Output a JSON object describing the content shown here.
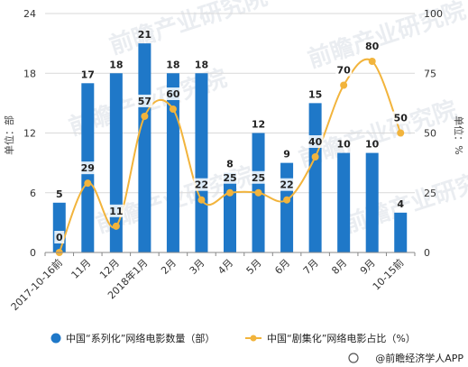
{
  "chart_data": {
    "type": "bar",
    "categories": [
      "2017-10-16前",
      "11月",
      "12月",
      "2018年1月",
      "2月",
      "3月",
      "4月",
      "5月",
      "6月",
      "7月",
      "8月",
      "9月",
      "10-15前"
    ],
    "series": [
      {
        "name": "中国“系列化”网络电影数量（部）",
        "kind": "bar",
        "axis": "left",
        "values": [
          5,
          17,
          18,
          21,
          18,
          18,
          8,
          12,
          9,
          15,
          10,
          10,
          4
        ]
      },
      {
        "name": "中国“剧集化”网络电影占比（%）",
        "kind": "line",
        "axis": "right",
        "values": [
          0,
          29,
          11,
          57,
          60,
          22,
          25,
          25,
          22,
          40,
          70,
          80,
          50
        ]
      }
    ],
    "ylabel_left": "单位：部",
    "ylabel_right": "单位：%",
    "ylim_left": [
      0,
      24
    ],
    "yticks_left": [
      "0",
      "6",
      "12",
      "18",
      "24"
    ],
    "ylim_right": [
      0,
      100
    ],
    "yticks_right": [
      "0",
      "25",
      "50",
      "75",
      "100"
    ],
    "grid": true,
    "legend": "bottom",
    "colors": {
      "bar": "#1f78c8",
      "line": "#f2b43c",
      "grid": "#d9d9d9"
    }
  },
  "watermark": "前瞻产业研究院",
  "source": "@前瞻经济学人APP"
}
